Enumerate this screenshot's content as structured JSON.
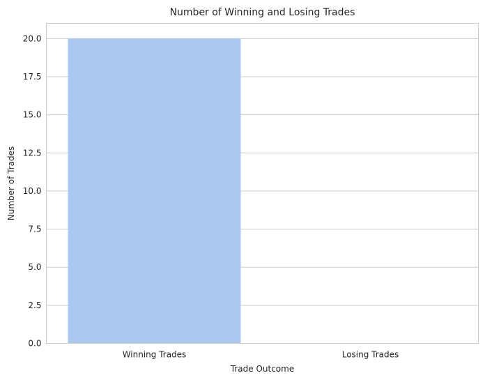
{
  "chart_data": {
    "type": "bar",
    "title": "Number of Winning and Losing Trades",
    "xlabel": "Trade Outcome",
    "ylabel": "Number of Trades",
    "categories": [
      "Winning Trades",
      "Losing Trades"
    ],
    "values": [
      20,
      0
    ],
    "ylim": [
      0,
      21
    ],
    "yticks": [
      "0.0",
      "2.5",
      "5.0",
      "7.5",
      "10.0",
      "12.5",
      "15.0",
      "17.5",
      "20.0"
    ],
    "grid": true,
    "bar_colors": [
      "#abc9ee",
      "#ffb482"
    ]
  }
}
